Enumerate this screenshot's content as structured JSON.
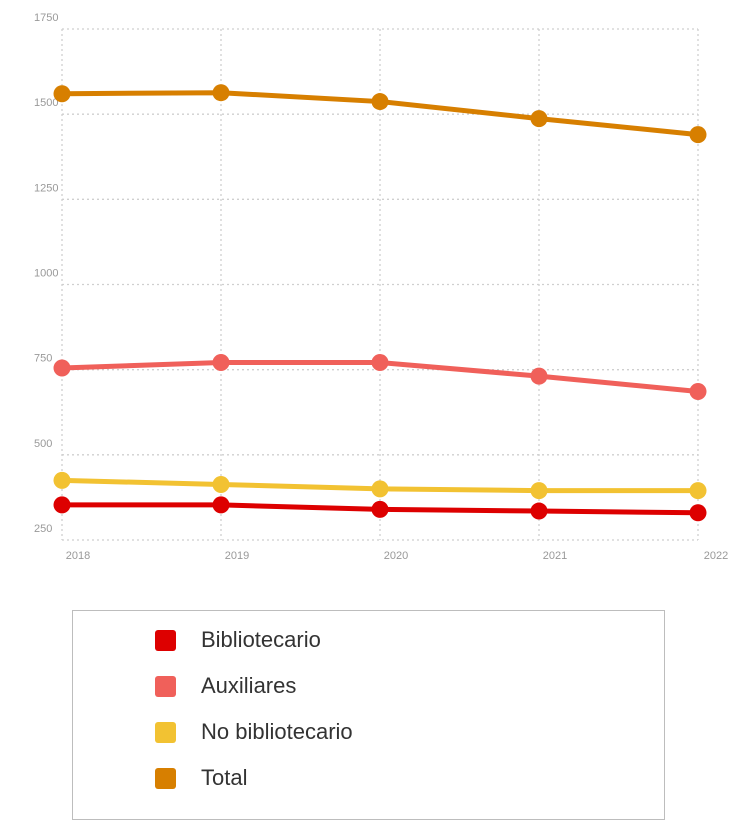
{
  "chart_data": {
    "type": "line",
    "x": [
      "2018",
      "2019",
      "2020",
      "2021",
      "2022"
    ],
    "ylim": [
      250,
      1750
    ],
    "yticks": [
      "250",
      "500",
      "750",
      "1000",
      "1250",
      "1500",
      "1750"
    ],
    "grid": true,
    "legend_position": "bottom",
    "series": [
      {
        "name": "Bibliotecario",
        "color": "#dd0000",
        "values": [
          353,
          353,
          340,
          335,
          330
        ]
      },
      {
        "name": "Auxiliares",
        "color": "#f0605a",
        "values": [
          755,
          771,
          771,
          731,
          686
        ]
      },
      {
        "name": "No bibliotecario",
        "color": "#f2c232",
        "values": [
          425,
          413,
          400,
          395,
          395
        ]
      },
      {
        "name": "Total",
        "color": "#d77f00",
        "values": [
          1560,
          1563,
          1537,
          1487,
          1440
        ]
      }
    ]
  }
}
